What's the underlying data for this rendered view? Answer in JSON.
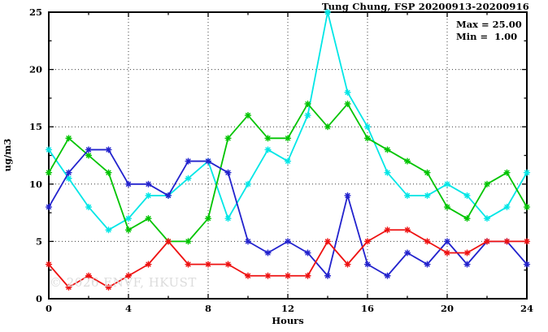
{
  "figure": {
    "title": "Tung Chung, FSP 20200913-20200916",
    "ylabel": "ug/m3",
    "xlabel": "Hours",
    "annotation_max": "Max = 25.00",
    "annotation_min": "Min =  1.00",
    "watermark": "© 2026 ENVF, HKUST"
  },
  "chart_data": {
    "type": "line",
    "title": "Tung Chung, FSP 20200913-20200916",
    "xlabel": "Hours",
    "ylabel": "ug/m3",
    "xlim": [
      0,
      24
    ],
    "ylim": [
      0,
      25
    ],
    "x_ticks": [
      0,
      4,
      8,
      12,
      16,
      20,
      24
    ],
    "y_ticks": [
      0,
      5,
      10,
      15,
      20,
      25
    ],
    "x_minor_step": 2,
    "y_minor_step": 2.5,
    "grid": "dotted",
    "legend_position": "none",
    "stat_max": 25.0,
    "stat_min": 1.0,
    "x": [
      0,
      1,
      2,
      3,
      4,
      5,
      6,
      7,
      8,
      9,
      10,
      11,
      12,
      13,
      14,
      15,
      16,
      17,
      18,
      19,
      20,
      21,
      22,
      23,
      24
    ],
    "series": [
      {
        "name": "cyan-series",
        "color": "#00e6e6",
        "values": [
          13,
          10.5,
          8,
          6,
          7,
          9,
          9,
          10.5,
          12,
          7,
          10,
          13,
          12,
          16,
          25,
          18,
          15,
          11,
          9,
          9,
          10,
          9,
          7,
          8,
          11
        ]
      },
      {
        "name": "green-series",
        "color": "#00c400",
        "values": [
          11,
          14,
          12.5,
          11,
          6,
          7,
          5,
          5,
          7,
          14,
          16,
          14,
          14,
          17,
          15,
          17,
          14,
          13,
          12,
          11,
          8,
          7,
          10,
          11,
          8
        ]
      },
      {
        "name": "blue-series",
        "color": "#2222cd",
        "values": [
          8,
          11,
          13,
          13,
          10,
          10,
          9,
          12,
          12,
          11,
          5,
          4,
          5,
          4,
          2,
          9,
          3,
          2,
          4,
          3,
          5,
          3,
          5,
          5,
          3
        ]
      },
      {
        "name": "red-series",
        "color": "#ee1111",
        "values": [
          3,
          1,
          2,
          1,
          2,
          3,
          5,
          3,
          3,
          3,
          2,
          2,
          2,
          2,
          5,
          3,
          5,
          6,
          6,
          5,
          4,
          4,
          5,
          5,
          5
        ]
      }
    ]
  },
  "layout_colors": {
    "axis": "#000000",
    "grid": "#3c3c3c",
    "background": "#ffffff"
  }
}
